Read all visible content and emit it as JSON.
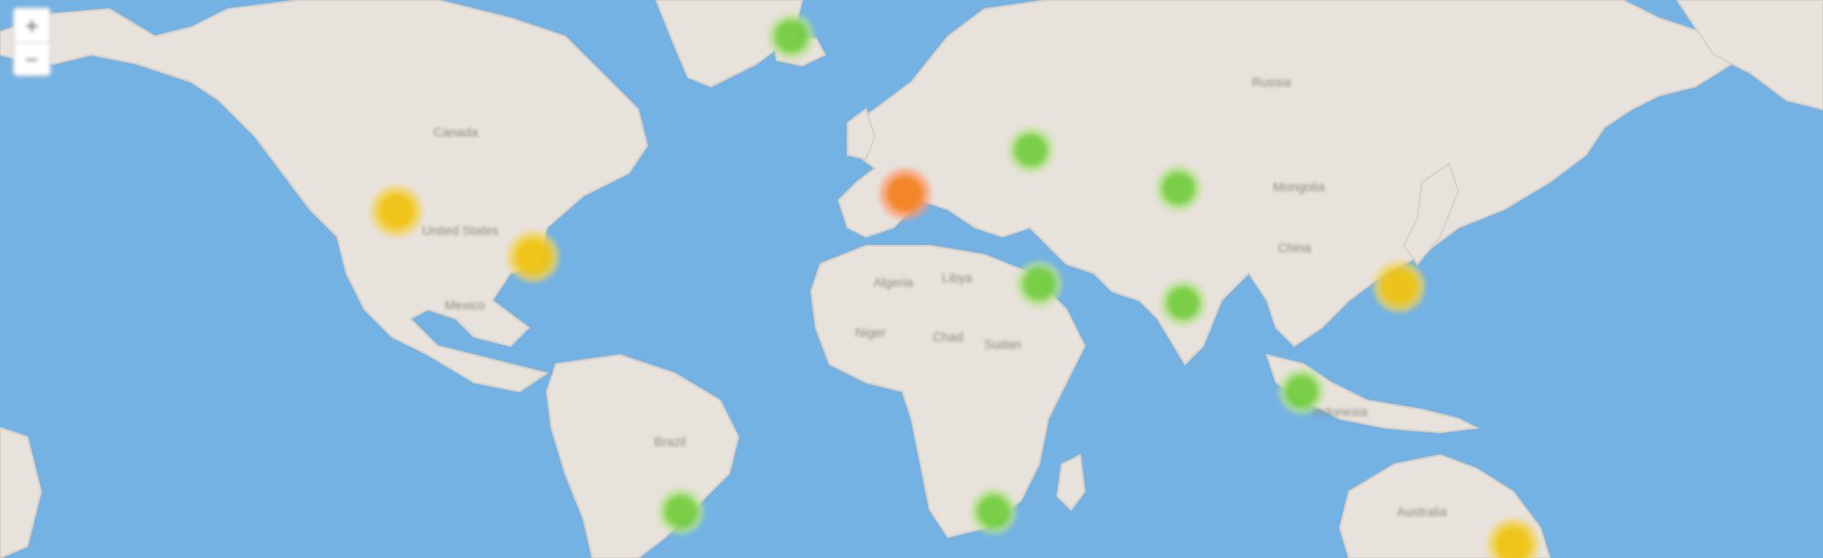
{
  "map": {
    "zoom_in_label": "+",
    "zoom_out_label": "−",
    "colors": {
      "water": "#74b2e3",
      "land": "#e8e2dc",
      "cluster_small": "#6ecc39",
      "cluster_medium": "#f0c20c",
      "cluster_large": "#f18017"
    },
    "place_labels": [
      "Canada",
      "United States",
      "Mexico",
      "Brazil",
      "Russia",
      "Mongolia",
      "China",
      "Australia",
      "Algeria",
      "Libya",
      "Niger",
      "Chad",
      "Sudan",
      "Indonesia"
    ],
    "clusters": [
      {
        "size": "small",
        "label": ""
      },
      {
        "size": "medium",
        "label": ""
      },
      {
        "size": "medium",
        "label": ""
      },
      {
        "size": "large",
        "label": ""
      },
      {
        "size": "small",
        "label": ""
      },
      {
        "size": "small",
        "label": ""
      },
      {
        "size": "small",
        "label": ""
      },
      {
        "size": "small",
        "label": ""
      },
      {
        "size": "small",
        "label": ""
      },
      {
        "size": "medium",
        "label": ""
      },
      {
        "size": "small",
        "label": ""
      },
      {
        "size": "small",
        "label": ""
      },
      {
        "size": "small",
        "label": ""
      },
      {
        "size": "medium",
        "label": ""
      }
    ]
  }
}
